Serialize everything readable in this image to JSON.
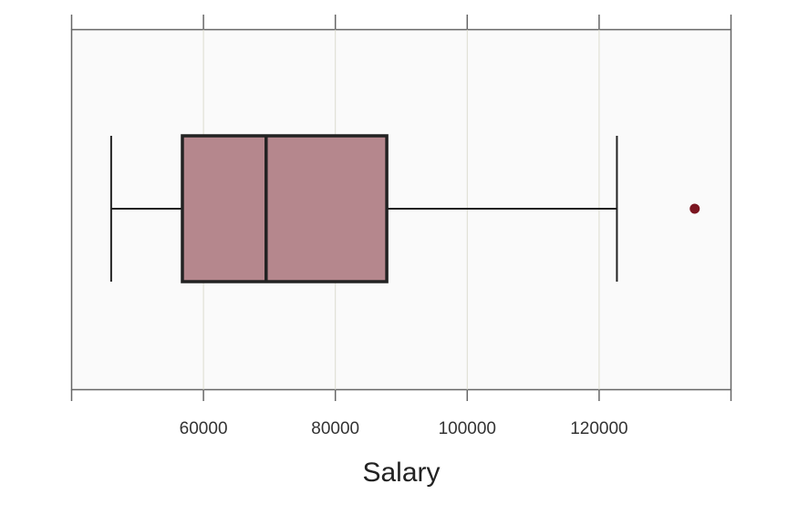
{
  "chart_data": {
    "type": "box",
    "orientation": "horizontal",
    "xlabel": "Salary",
    "xlim": [
      40000,
      140000
    ],
    "xticks": [
      40000,
      60000,
      80000,
      100000,
      120000,
      140000
    ],
    "xtick_labels": [
      "",
      "60000",
      "80000",
      "100000",
      "120000",
      ""
    ],
    "grid": true,
    "box": {
      "whisker_low": 46000,
      "q1": 56800,
      "median": 69500,
      "q3": 87800,
      "whisker_high": 122700,
      "outliers": [
        134500
      ]
    },
    "colors": {
      "box_fill": "#b5878d",
      "box_edge": "#222222",
      "outlier": "#7b1520",
      "panel_bg": "#fafafa",
      "grid": "#dcdccf",
      "frame": "#666666"
    }
  }
}
